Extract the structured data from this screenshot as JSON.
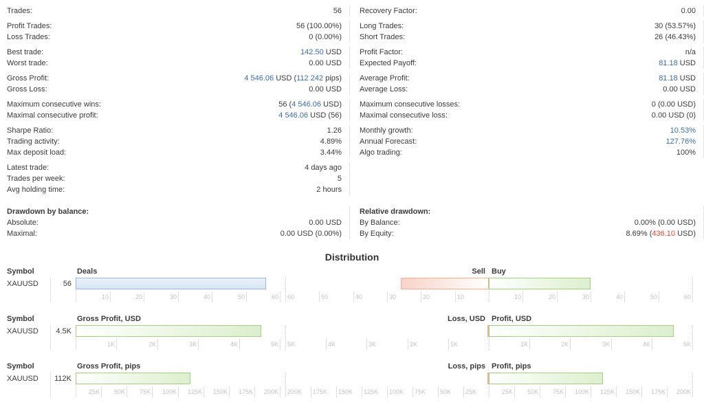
{
  "stats": {
    "columns": [
      {
        "side": "left",
        "groups": [
          {
            "rows": [
              {
                "label": "Trades:",
                "parts": [
                  {
                    "t": "56"
                  }
                ]
              }
            ]
          },
          {
            "rows": [
              {
                "label": "Profit Trades:",
                "parts": [
                  {
                    "t": "56 (100.00%)"
                  }
                ]
              },
              {
                "label": "Loss Trades:",
                "parts": [
                  {
                    "t": "0 (0.00%)"
                  }
                ]
              }
            ]
          },
          {
            "rows": [
              {
                "label": "Best trade:",
                "parts": [
                  {
                    "t": "142.50",
                    "c": "blue"
                  },
                  {
                    "t": " USD"
                  }
                ]
              },
              {
                "label": "Worst trade:",
                "parts": [
                  {
                    "t": "0.00 USD"
                  }
                ]
              }
            ]
          },
          {
            "rows": [
              {
                "label": "Gross Profit:",
                "parts": [
                  {
                    "t": "4 546.06",
                    "c": "blue"
                  },
                  {
                    "t": " USD ("
                  },
                  {
                    "t": "112 242",
                    "c": "blue"
                  },
                  {
                    "t": " pips)"
                  }
                ]
              },
              {
                "label": "Gross Loss:",
                "parts": [
                  {
                    "t": "0.00 USD"
                  }
                ]
              }
            ]
          },
          {
            "rows": [
              {
                "label": "Maximum consecutive wins:",
                "parts": [
                  {
                    "t": "56 ("
                  },
                  {
                    "t": "4 546.06",
                    "c": "blue"
                  },
                  {
                    "t": " USD)"
                  }
                ]
              },
              {
                "label": "Maximal consecutive profit:",
                "parts": [
                  {
                    "t": "4 546.06",
                    "c": "blue"
                  },
                  {
                    "t": " USD (56)"
                  }
                ]
              }
            ]
          },
          {
            "rows": [
              {
                "label": "Sharpe Ratio:",
                "parts": [
                  {
                    "t": "1.26"
                  }
                ]
              },
              {
                "label": "Trading activity:",
                "parts": [
                  {
                    "t": "4.89%"
                  }
                ]
              },
              {
                "label": "Max deposit load:",
                "parts": [
                  {
                    "t": "3.44%"
                  }
                ]
              }
            ]
          },
          {
            "extra_gap": true,
            "rows": [
              {
                "label": "Latest trade:",
                "parts": [
                  {
                    "t": "4 days ago"
                  }
                ]
              },
              {
                "label": "Trades per week:",
                "parts": [
                  {
                    "t": "5"
                  }
                ]
              },
              {
                "label": "Avg holding time:",
                "parts": [
                  {
                    "t": "2 hours"
                  }
                ]
              }
            ]
          },
          {
            "rows": [
              {
                "label": "Drawdown by balance:",
                "bold": true,
                "parts": []
              },
              {
                "label": "Absolute:",
                "parts": [
                  {
                    "t": "0.00 USD"
                  }
                ]
              },
              {
                "label": "Maximal:",
                "parts": [
                  {
                    "t": "0.00 USD (0.00%)"
                  }
                ]
              }
            ]
          }
        ]
      },
      {
        "side": "right",
        "groups": [
          {
            "rows": [
              {
                "label": "Recovery Factor:",
                "parts": [
                  {
                    "t": "0.00"
                  }
                ]
              }
            ]
          },
          {
            "rows": [
              {
                "label": "Long Trades:",
                "parts": [
                  {
                    "t": "30 (53.57%)"
                  }
                ]
              },
              {
                "label": "Short Trades:",
                "parts": [
                  {
                    "t": "26 (46.43%)"
                  }
                ]
              }
            ]
          },
          {
            "rows": [
              {
                "label": "Profit Factor:",
                "parts": [
                  {
                    "t": "n/a"
                  }
                ]
              },
              {
                "label": "Expected Payoff:",
                "parts": [
                  {
                    "t": "81.18",
                    "c": "blue"
                  },
                  {
                    "t": " USD"
                  }
                ]
              }
            ]
          },
          {
            "rows": [
              {
                "label": "Average Profit:",
                "parts": [
                  {
                    "t": "81.18",
                    "c": "blue"
                  },
                  {
                    "t": " USD"
                  }
                ]
              },
              {
                "label": "Average Loss:",
                "parts": [
                  {
                    "t": "0.00 USD"
                  }
                ]
              }
            ]
          },
          {
            "rows": [
              {
                "label": "Maximum consecutive losses:",
                "parts": [
                  {
                    "t": "0 (0.00 USD)"
                  }
                ]
              },
              {
                "label": "Maximal consecutive loss:",
                "parts": [
                  {
                    "t": "0.00 USD (0)"
                  }
                ]
              }
            ]
          },
          {
            "rows": [
              {
                "label": "Monthly growth:",
                "parts": [
                  {
                    "t": "10.53%",
                    "c": "blue"
                  }
                ]
              },
              {
                "label": "Annual Forecast:",
                "parts": [
                  {
                    "t": "127.76%",
                    "c": "blue"
                  }
                ]
              },
              {
                "label": "Algo trading:",
                "parts": [
                  {
                    "t": "100%"
                  }
                ]
              }
            ]
          },
          {
            "spacer": true,
            "extra_gap": true
          },
          {
            "rows": [
              {
                "label": "Relative drawdown:",
                "bold": true,
                "parts": []
              },
              {
                "label": "By Balance:",
                "parts": [
                  {
                    "t": "0.00% (0.00 USD)"
                  }
                ]
              },
              {
                "label": "By Equity:",
                "parts": [
                  {
                    "t": "8.69% ("
                  },
                  {
                    "t": "436.10",
                    "c": "red"
                  },
                  {
                    "t": " USD)"
                  }
                ]
              }
            ]
          }
        ]
      }
    ]
  },
  "distribution": {
    "title": "Distribution",
    "symbol_header": "Symbol",
    "rows": [
      {
        "symbol": "XAUUSD",
        "value_label": "56",
        "left": {
          "header": "Deals",
          "max": 60,
          "bar_value": 56,
          "bar_style": "blue",
          "ticks": [
            {
              "v": 10,
              "t": "10"
            },
            {
              "v": 20,
              "t": "20"
            },
            {
              "v": 30,
              "t": "30"
            },
            {
              "v": 40,
              "t": "40"
            },
            {
              "v": 50,
              "t": "50"
            },
            {
              "v": 60,
              "t": "60"
            }
          ]
        },
        "right": {
          "header_left": "Sell",
          "header_right": "Buy",
          "max": 60,
          "bar_left_value": 26,
          "bar_right_value": 30,
          "ticks": [
            {
              "v": 10,
              "t": "10"
            },
            {
              "v": 20,
              "t": "20"
            },
            {
              "v": 30,
              "t": "30"
            },
            {
              "v": 40,
              "t": "40"
            },
            {
              "v": 50,
              "t": "50"
            },
            {
              "v": 60,
              "t": "60"
            }
          ]
        }
      },
      {
        "symbol": "XAUUSD",
        "value_label": "4.5K",
        "left": {
          "header": "Gross Profit, USD",
          "max": 5000,
          "bar_value": 4546,
          "bar_style": "green",
          "ticks": [
            {
              "v": 1000,
              "t": "1K"
            },
            {
              "v": 2000,
              "t": "2K"
            },
            {
              "v": 3000,
              "t": "3K"
            },
            {
              "v": 4000,
              "t": "4K"
            },
            {
              "v": 5000,
              "t": "5K"
            }
          ]
        },
        "right": {
          "header_left": "Loss, USD",
          "header_right": "Profit, USD",
          "max": 5000,
          "bar_left_value": 0,
          "bar_right_value": 4546,
          "ticks": [
            {
              "v": 1000,
              "t": "1K"
            },
            {
              "v": 2000,
              "t": "2K"
            },
            {
              "v": 3000,
              "t": "3K"
            },
            {
              "v": 4000,
              "t": "4K"
            },
            {
              "v": 5000,
              "t": "5K"
            }
          ]
        }
      },
      {
        "symbol": "XAUUSD",
        "value_label": "112K",
        "left": {
          "header": "Gross Profit, pips",
          "max": 200000,
          "bar_value": 112242,
          "bar_style": "green",
          "ticks": [
            {
              "v": 25000,
              "t": "25K"
            },
            {
              "v": 50000,
              "t": "50K"
            },
            {
              "v": 75000,
              "t": "75K"
            },
            {
              "v": 100000,
              "t": "100K"
            },
            {
              "v": 125000,
              "t": "125K"
            },
            {
              "v": 150000,
              "t": "150K"
            },
            {
              "v": 175000,
              "t": "175K"
            },
            {
              "v": 200000,
              "t": "200K"
            }
          ]
        },
        "right": {
          "header_left": "Loss, pips",
          "header_right": "Profit, pips",
          "max": 200000,
          "bar_left_value": 0,
          "bar_right_value": 112242,
          "ticks": [
            {
              "v": 25000,
              "t": "25K"
            },
            {
              "v": 50000,
              "t": "50K"
            },
            {
              "v": 75000,
              "t": "75K"
            },
            {
              "v": 100000,
              "t": "100K"
            },
            {
              "v": 125000,
              "t": "125K"
            },
            {
              "v": 150000,
              "t": "150K"
            },
            {
              "v": 175000,
              "t": "175K"
            },
            {
              "v": 200000,
              "t": "200K"
            }
          ]
        }
      }
    ]
  }
}
